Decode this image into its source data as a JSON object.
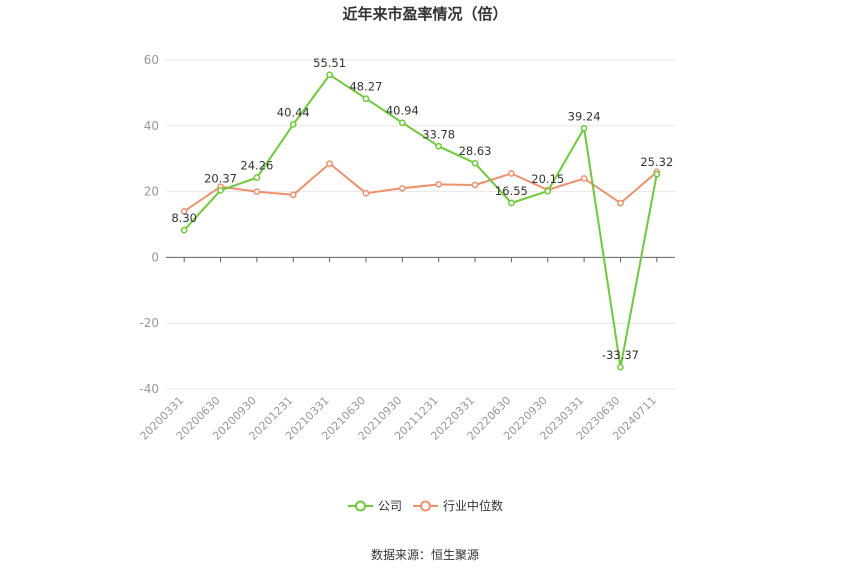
{
  "chart_data": {
    "type": "line",
    "title": "近年来市盈率情况（倍）",
    "categories": [
      "20200331",
      "20200630",
      "20200930",
      "20201231",
      "20210331",
      "20210630",
      "20210930",
      "20211231",
      "20220331",
      "20220630",
      "20220930",
      "20230331",
      "20230630",
      "20240711"
    ],
    "series": [
      {
        "name": "公司",
        "color": "#6acd35",
        "values": [
          8.3,
          20.37,
          24.26,
          40.44,
          55.51,
          48.27,
          40.94,
          33.78,
          28.63,
          16.55,
          20.15,
          39.24,
          -33.37,
          25.32
        ],
        "labels": [
          "8.30",
          "20.37",
          "24.26",
          "40.44",
          "55.51",
          "48.27",
          "40.94",
          "33.78",
          "28.63",
          "16.55",
          "20.15",
          "39.24",
          "-33.37",
          "25.32"
        ]
      },
      {
        "name": "行业中位数",
        "color": "#f0906b",
        "values": [
          14,
          21.5,
          20,
          19,
          28.5,
          19.5,
          21,
          22.2,
          22,
          25.5,
          20.5,
          24,
          16.5,
          26
        ]
      }
    ],
    "ylim": [
      -40,
      60
    ],
    "yticks": [
      "60",
      "40",
      "20",
      "0",
      "-20",
      "-40"
    ],
    "ytick_values": [
      60,
      40,
      20,
      0,
      -20,
      -40
    ],
    "grid": true,
    "legend_position": "bottom"
  },
  "source": "数据来源：恒生聚源"
}
